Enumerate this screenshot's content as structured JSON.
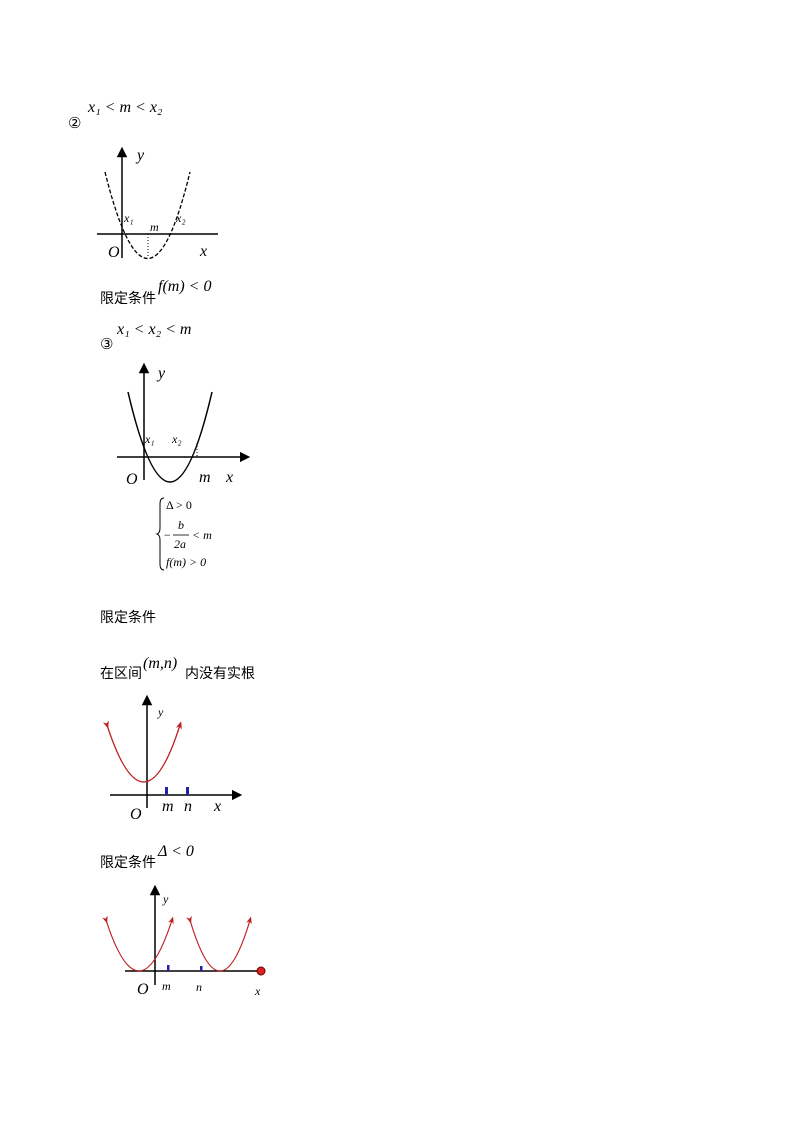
{
  "case2": {
    "marker": "②",
    "condition": "x₁ < m < x₂",
    "graph_labels": [
      "y",
      "x₁",
      "m",
      "x₂",
      "O",
      "x"
    ],
    "limit_label": "限定条件",
    "limit": "f(m) < 0"
  },
  "case3": {
    "marker": "③",
    "condition": "x₁ < x₂ < m",
    "graph_labels": [
      "y",
      "x₁",
      "x₂",
      "O",
      "m",
      "x"
    ],
    "system": {
      "line1": "Δ > 0",
      "line2_sign": "−",
      "line2_num": "b",
      "line2_den": "2a",
      "line2_rel": "< m",
      "line3": "f(m) > 0"
    },
    "limit_label": "限定条件"
  },
  "no_root": {
    "prefix": "在区间",
    "interval": "(m,n)",
    "suffix": "内没有实根",
    "graph_labels": [
      "y",
      "O",
      "m",
      "n",
      "x"
    ],
    "limit_label": "限定条件",
    "limit": "Δ < 0",
    "graph2_labels": [
      "y",
      "O",
      "m",
      "n",
      "x"
    ]
  }
}
